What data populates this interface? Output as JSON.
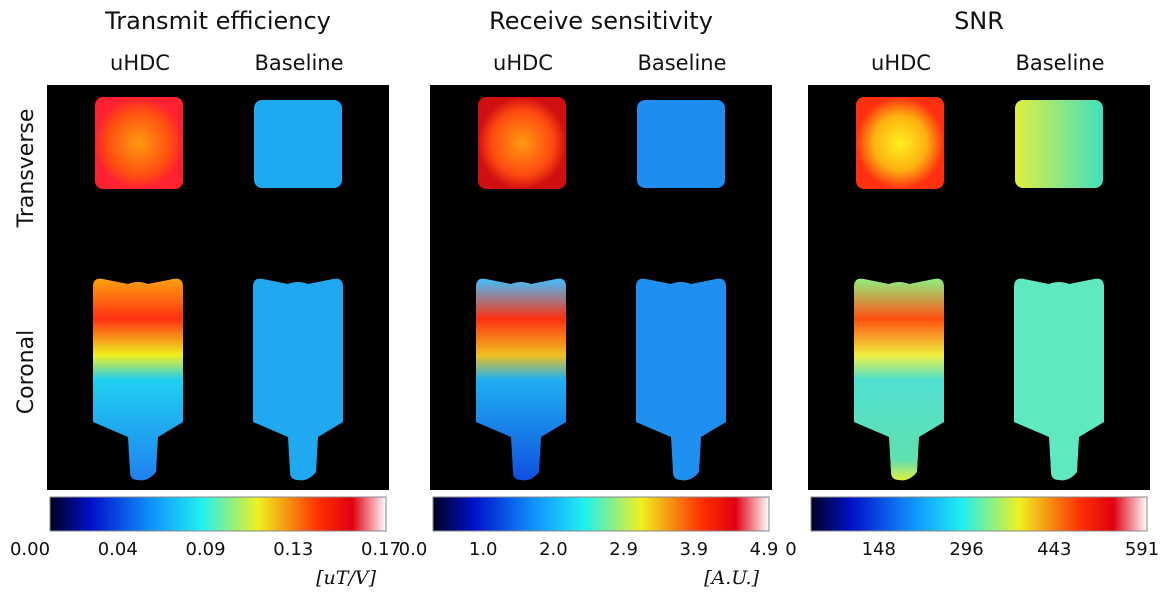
{
  "rows": [
    "Transverse",
    "Coronal"
  ],
  "panels": [
    {
      "title": "Transmit efficiency",
      "columns": [
        "uHDC",
        "Baseline"
      ],
      "colorbar": {
        "ticks": [
          "0.00",
          "0.04",
          "0.09",
          "0.13",
          "0.17"
        ],
        "unit": "[uT/V]"
      }
    },
    {
      "title": "Receive sensitivity",
      "columns": [
        "uHDC",
        "Baseline"
      ],
      "colorbar": {
        "ticks": [
          "0.0",
          "1.0",
          "2.0",
          "2.9",
          "3.9",
          "4.9"
        ],
        "unit": "[A.U.]"
      }
    },
    {
      "title": "SNR",
      "columns": [
        "uHDC",
        "Baseline"
      ],
      "colorbar": {
        "ticks": [
          "0",
          "148",
          "296",
          "443",
          "591"
        ]
      }
    }
  ]
}
